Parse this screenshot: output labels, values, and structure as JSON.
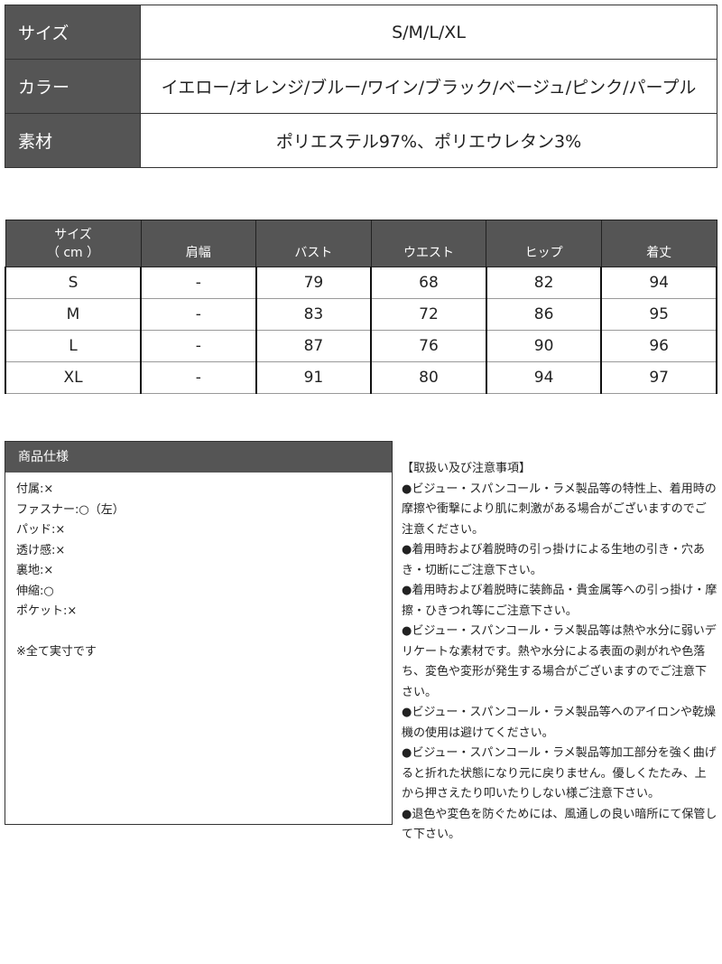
{
  "product_info": [
    {
      "label": "サイズ",
      "value": "S/M/L/XL"
    },
    {
      "label": "カラー",
      "value": "イエロー/オレンジ/ブルー/ワイン/ブラック/ベージュ/ピンク/パープル"
    },
    {
      "label": "素材",
      "value": "ポリエステル97%、ポリエウレタン3%"
    }
  ],
  "size_table": {
    "header_size": "サイズ",
    "header_unit": "（ cm ）",
    "columns": [
      "肩幅",
      "バスト",
      "ウエスト",
      "ヒップ",
      "着丈"
    ],
    "rows": [
      [
        "S",
        "-",
        "79",
        "68",
        "82",
        "94"
      ],
      [
        "M",
        "-",
        "83",
        "72",
        "86",
        "95"
      ],
      [
        "L",
        "-",
        "87",
        "76",
        "90",
        "96"
      ],
      [
        "XL",
        "-",
        "91",
        "80",
        "94",
        "97"
      ]
    ]
  },
  "spec": {
    "title": "商品仕様",
    "items": [
      "付属:×",
      "ファスナー:○（左）",
      "パッド:×",
      "透け感:×",
      "裏地:×",
      "伸縮:○",
      "ポケット:×"
    ],
    "note": "※全て実寸です"
  },
  "care": {
    "title": "【取扱い及び注意事項】",
    "items": [
      "●ビジュー・スパンコール・ラメ製品等の特性上、着用時の摩擦や衝撃により肌に刺激がある場合がございますのでご注意ください。",
      "●着用時および着脱時の引っ掛けによる生地の引き・穴あき・切断にご注意下さい。",
      "●着用時および着脱時に装飾品・貴金属等への引っ掛け・摩擦・ひきつれ等にご注意下さい。",
      "●ビジュー・スパンコール・ラメ製品等は熱や水分に弱いデリケートな素材です。熱や水分による表面の剥がれや色落ち、変色や変形が発生する場合がございますのでご注意下さい。",
      "●ビジュー・スパンコール・ラメ製品等へのアイロンや乾燥機の使用は避けてください。",
      "●ビジュー・スパンコール・ラメ製品等加工部分を強く曲げると折れた状態になり元に戻りません。優しくたたみ、上から押さえたり叩いたりしない様ご注意下さい。",
      "●退色や変色を防ぐためには、風通しの良い暗所にて保管して下さい。"
    ]
  }
}
